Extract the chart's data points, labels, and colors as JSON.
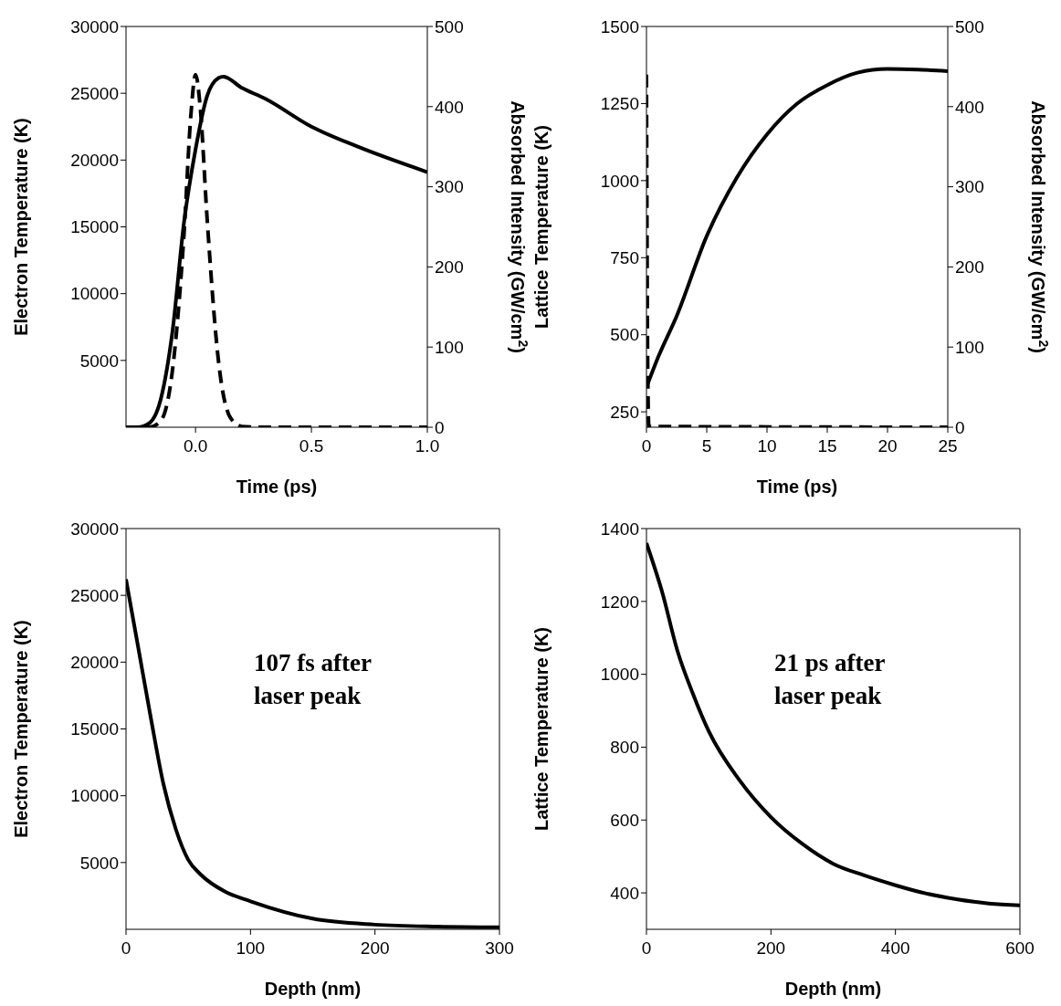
{
  "chart_data": [
    {
      "type": "line",
      "xlabel": "Time (ps)",
      "ylabel": "Electron Temperature (K)",
      "y2label": "Absorbed Intensity (GW/cm$^{2}$)",
      "xlim": [
        -0.3,
        1.0
      ],
      "xticks": [
        {
          "value": 0,
          "label": "0.0"
        },
        {
          "value": 0.5,
          "label": "0.5"
        },
        {
          "value": 1,
          "label": "1.0"
        }
      ],
      "ylim": [
        0,
        30000
      ],
      "yticks": [
        5000,
        10000,
        15000,
        20000,
        25000,
        30000
      ],
      "y2lim": [
        0,
        500
      ],
      "y2ticks": [
        0,
        100,
        200,
        300,
        400,
        500
      ],
      "marker": "none",
      "series": [
        {
          "color": "#000000",
          "line_style": "solid",
          "x": [
            -0.3,
            -0.25,
            -0.2,
            -0.15,
            -0.1,
            -0.05,
            0,
            0.05,
            0.1,
            0.12,
            0.2,
            0.3,
            0.5,
            0.7,
            1.0
          ],
          "values": [
            0,
            0,
            300,
            2100,
            7100,
            15300,
            20800,
            24800,
            26150,
            26250,
            25400,
            24600,
            22500,
            21000,
            19100
          ]
        },
        {
          "color": "#000000",
          "line_style": "dashed",
          "axis": "y2",
          "x": [
            -0.3,
            -0.2,
            -0.15,
            -0.1,
            -0.05,
            -0.02,
            0,
            0.02,
            0.05,
            0.1,
            0.15,
            0.2,
            0.3,
            1.0
          ],
          "values": [
            0,
            0,
            8,
            70,
            240,
            390,
            440,
            400,
            260,
            80,
            12,
            1,
            0,
            0
          ]
        }
      ]
    },
    {
      "type": "line",
      "xlabel": "Time (ps)",
      "ylabel": "Lattice Temperature (K)",
      "y2label": "Absorbed Intensity (GW/cm$^{2}$)",
      "xlim": [
        0,
        25
      ],
      "xticks": [
        0,
        5,
        10,
        15,
        20,
        25
      ],
      "ylim": [
        200,
        1500
      ],
      "yticks": [
        250,
        500,
        750,
        1000,
        1250,
        1500
      ],
      "y2lim": [
        0,
        500
      ],
      "y2ticks": [
        0,
        100,
        200,
        300,
        400,
        500
      ],
      "marker": "none",
      "series": [
        {
          "color": "#000000",
          "line_style": "solid",
          "x": [
            0,
            1,
            2.5,
            5,
            7.5,
            10,
            12.5,
            15,
            17.5,
            20,
            22.5,
            25
          ],
          "values": [
            330,
            430,
            560,
            820,
            1010,
            1150,
            1250,
            1310,
            1350,
            1362,
            1360,
            1355
          ]
        },
        {
          "color": "#000000",
          "line_style": "dashed",
          "axis": "y2",
          "x": [
            0,
            0.1,
            0.2,
            25
          ],
          "values": [
            440,
            80,
            1,
            0
          ]
        }
      ]
    },
    {
      "type": "line",
      "xlabel": "Depth (nm)",
      "ylabel": "Electron Temperature (K)",
      "xlim": [
        0,
        300
      ],
      "xticks": [
        0,
        100,
        200,
        300
      ],
      "ylim": [
        0,
        30000
      ],
      "yticks": [
        5000,
        10000,
        15000,
        20000,
        25000,
        30000
      ],
      "marker": "none",
      "annotations": [
        "107 fs after laser peak"
      ],
      "series": [
        {
          "color": "#000000",
          "line_style": "solid",
          "x": [
            0,
            10,
            20,
            30,
            40,
            50,
            60,
            80,
            100,
            150,
            200,
            250,
            300
          ],
          "values": [
            26200,
            21000,
            15800,
            10900,
            7500,
            5200,
            4100,
            2800,
            2100,
            800,
            350,
            200,
            150
          ]
        }
      ]
    },
    {
      "type": "line",
      "xlabel": "Depth (nm)",
      "ylabel": "Lattice Temperature (K)",
      "xlim": [
        0,
        600
      ],
      "xticks": [
        0,
        200,
        400,
        600
      ],
      "ylim": [
        300,
        1400
      ],
      "yticks": [
        400,
        600,
        800,
        1000,
        1200,
        1400
      ],
      "marker": "none",
      "annotations": [
        "21 ps after laser peak"
      ],
      "series": [
        {
          "color": "#000000",
          "line_style": "solid",
          "x": [
            0,
            25,
            50,
            75,
            100,
            150,
            200,
            250,
            300,
            350,
            400,
            450,
            500,
            550,
            600
          ],
          "values": [
            1360,
            1227,
            1063,
            945,
            844,
            708,
            608,
            535,
            480,
            448,
            421,
            398,
            382,
            371,
            366
          ]
        }
      ]
    }
  ]
}
